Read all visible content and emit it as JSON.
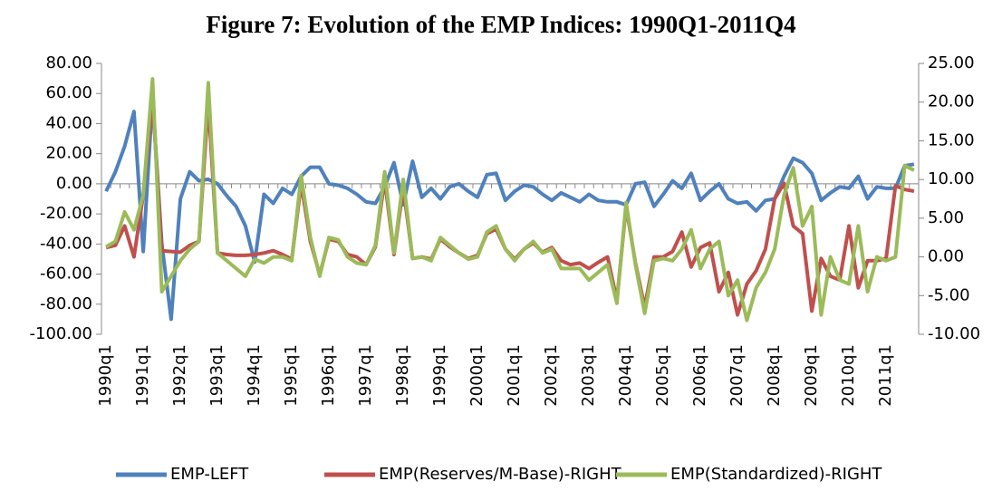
{
  "chart_data": {
    "type": "line",
    "title": "Figure 7: Evolution of the EMP Indices: 1990Q1-2011Q4",
    "categories": [
      "1990q1",
      null,
      null,
      null,
      "1991q1",
      null,
      null,
      null,
      "1992q1",
      null,
      null,
      null,
      "1993q1",
      null,
      null,
      null,
      "1994q1",
      null,
      null,
      null,
      "1995q1",
      null,
      null,
      null,
      "1996q1",
      null,
      null,
      null,
      "1997q1",
      null,
      null,
      null,
      "1998q1",
      null,
      null,
      null,
      "1999q1",
      null,
      null,
      null,
      "2000q1",
      null,
      null,
      null,
      "2001q1",
      null,
      null,
      null,
      "2002q1",
      null,
      null,
      null,
      "2003q1",
      null,
      null,
      null,
      "2004q1",
      null,
      null,
      null,
      "2005q1",
      null,
      null,
      null,
      "2006q1",
      null,
      null,
      null,
      "2007q1",
      null,
      null,
      null,
      "2008q1",
      null,
      null,
      null,
      "2009q1",
      null,
      null,
      null,
      "2010q1",
      null,
      null,
      null,
      "2011q1",
      null,
      null,
      null
    ],
    "series": [
      {
        "name": "EMP-LEFT",
        "color": "#4f81bd",
        "values": [
          -5,
          8,
          25,
          48,
          -45,
          57,
          -40,
          -90,
          -10,
          8,
          2,
          3,
          0,
          -8,
          -15,
          -28,
          -52,
          -7,
          -13,
          -3,
          -7,
          5,
          11,
          11,
          0,
          -1,
          -3,
          -7,
          -12,
          -13,
          -2,
          14,
          -14,
          15,
          -9,
          -3,
          -10,
          -2,
          0,
          -5,
          -9,
          6,
          7,
          -11,
          -5,
          -1,
          -2,
          -7,
          -11,
          -6,
          -9,
          -12,
          -7,
          -11,
          -12,
          -12,
          -14,
          0,
          1,
          -15,
          -7,
          2,
          -3,
          7,
          -11,
          -5,
          0,
          -10,
          -13,
          -12,
          -18,
          -11,
          -10,
          5,
          17,
          14,
          7,
          -11,
          -6,
          -2,
          -3,
          5,
          -10,
          -2,
          -3,
          -3,
          12,
          13
        ]
      },
      {
        "name": "EMP(Reserves/M-Base)-RIGHT",
        "color": "#c0504d",
        "axis": "y2",
        "values": [
          1.2,
          1.5,
          4,
          0,
          8,
          20.5,
          0.8,
          0.7,
          0.6,
          1.5,
          2,
          20,
          0.5,
          0.3,
          0.2,
          0.2,
          0.3,
          0.5,
          0.8,
          0.3,
          -0.3,
          9.5,
          2,
          -2.3,
          2.3,
          2,
          0.3,
          0,
          -1,
          1.3,
          10,
          0.3,
          9,
          -0.2,
          0,
          -0.3,
          2.3,
          1.3,
          0.5,
          -0.2,
          0.2,
          3,
          3.6,
          1,
          -0.3,
          1,
          1.8,
          0.6,
          1.2,
          -0.5,
          -1,
          -0.8,
          -1.5,
          -0.7,
          0,
          -5.6,
          6.5,
          -0.8,
          -6.5,
          0,
          0,
          0.7,
          3.2,
          -1.3,
          1.2,
          1.8,
          -4.5,
          -2,
          -7.5,
          -3.5,
          -1.8,
          1,
          7.5,
          9.5,
          4,
          3,
          -7,
          -0.2,
          -2.5,
          -3,
          4,
          -4,
          -0.5,
          -0.5,
          -0.2,
          9.2,
          8.7,
          8.5
        ]
      },
      {
        "name": "EMP(Standardized)-RIGHT",
        "color": "#9bbb59",
        "axis": "y2",
        "values": [
          1.3,
          2,
          5.8,
          3.5,
          8,
          23,
          -4.5,
          -2.5,
          -0.5,
          1,
          2,
          22.5,
          0.5,
          -0.5,
          -1.5,
          -2.5,
          -0.3,
          -0.8,
          0,
          0,
          -0.5,
          10.5,
          2.5,
          -2.5,
          2.5,
          2.2,
          0,
          -0.8,
          -1,
          1.5,
          11,
          0.5,
          10,
          -0.2,
          0,
          -0.5,
          2.5,
          1.5,
          0.5,
          -0.3,
          0,
          3.2,
          4,
          1,
          -0.5,
          1,
          2,
          0.5,
          1,
          -1.5,
          -1.5,
          -1.5,
          -3,
          -2,
          -1,
          -6,
          7,
          -1,
          -7.3,
          -0.5,
          -0.2,
          -0.5,
          1,
          3.5,
          -1.5,
          1,
          2,
          -5,
          -3,
          -8.2,
          -4,
          -2,
          1,
          8,
          11.5,
          4,
          6.5,
          -7.5,
          0,
          -3,
          -3.5,
          4,
          -4.5,
          0,
          -0.5,
          0,
          11.8,
          11.2
        ]
      }
    ],
    "ylim": [
      -100,
      80
    ],
    "yticks": [
      {
        "value": -100,
        "label": "-100.00"
      },
      {
        "value": -80,
        "label": "-80.00"
      },
      {
        "value": -60,
        "label": "-60.00"
      },
      {
        "value": -40,
        "label": "-40.00"
      },
      {
        "value": -20,
        "label": "-20.00"
      },
      {
        "value": 0,
        "label": "0.00"
      },
      {
        "value": 20,
        "label": "20.00"
      },
      {
        "value": 40,
        "label": "40.00"
      },
      {
        "value": 60,
        "label": "60.00"
      },
      {
        "value": 80,
        "label": "80.00"
      }
    ],
    "y2lim": [
      -10,
      25
    ],
    "y2ticks": [
      {
        "value": -10,
        "label": "-10.00"
      },
      {
        "value": -5,
        "label": "-5.00"
      },
      {
        "value": 0,
        "label": "0.00"
      },
      {
        "value": 5,
        "label": "5.00"
      },
      {
        "value": 10,
        "label": "10.00"
      },
      {
        "value": 15,
        "label": "15.00"
      },
      {
        "value": 20,
        "label": "20.00"
      },
      {
        "value": 25,
        "label": "25.00"
      }
    ],
    "legend": "bottom"
  }
}
